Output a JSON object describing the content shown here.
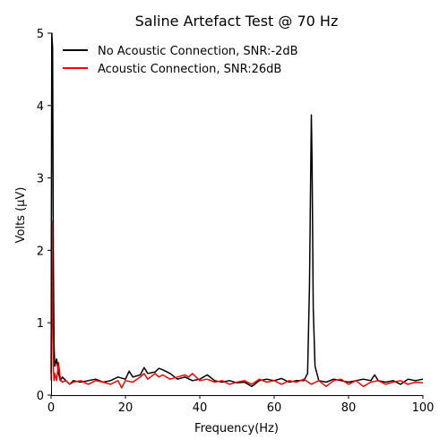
{
  "chart_data": {
    "type": "line",
    "title": "Saline Artefact Test @ 70 Hz",
    "xlabel": "Frequency(Hz)",
    "ylabel": "Volts (μV)",
    "xlim": [
      0,
      100
    ],
    "ylim": [
      0,
      5
    ],
    "xticks": [
      0,
      20,
      40,
      60,
      80,
      100
    ],
    "yticks": [
      0,
      1,
      2,
      3,
      4,
      5
    ],
    "grid": false,
    "legend_position": "upper-left",
    "series": [
      {
        "name": "No Acoustic Connection, SNR:-2dB",
        "color": "#000000",
        "x": [
          0,
          0.2,
          0.4,
          0.6,
          0.8,
          1,
          1.5,
          2,
          2.5,
          3,
          4,
          5,
          6,
          8,
          10,
          12,
          14,
          16,
          18,
          20,
          21,
          22,
          24,
          25,
          26,
          28,
          29,
          30,
          32,
          34,
          36,
          38,
          40,
          42,
          44,
          46,
          48,
          50,
          52,
          54,
          56,
          58,
          60,
          62,
          64,
          66,
          68,
          69,
          69.5,
          69.8,
          70,
          70.2,
          70.5,
          71,
          72,
          74,
          76,
          78,
          80,
          82,
          84,
          86,
          87,
          88,
          90,
          92,
          94,
          96,
          98,
          100
        ],
        "values": [
          0.3,
          5.0,
          4.8,
          2.0,
          0.7,
          0.4,
          0.5,
          0.3,
          0.2,
          0.25,
          0.2,
          0.15,
          0.2,
          0.18,
          0.2,
          0.22,
          0.18,
          0.2,
          0.25,
          0.22,
          0.33,
          0.25,
          0.28,
          0.38,
          0.3,
          0.32,
          0.37,
          0.35,
          0.3,
          0.22,
          0.25,
          0.2,
          0.22,
          0.28,
          0.2,
          0.18,
          0.2,
          0.17,
          0.18,
          0.12,
          0.2,
          0.22,
          0.2,
          0.23,
          0.18,
          0.2,
          0.2,
          0.3,
          1.5,
          3.0,
          3.87,
          3.2,
          1.2,
          0.4,
          0.2,
          0.18,
          0.22,
          0.2,
          0.18,
          0.2,
          0.22,
          0.2,
          0.28,
          0.2,
          0.18,
          0.2,
          0.15,
          0.22,
          0.2,
          0.22
        ]
      },
      {
        "name": "Acoustic Connection, SNR:26dB",
        "color": "#ff0000",
        "x": [
          0,
          0.2,
          0.4,
          0.6,
          0.8,
          1,
          1.5,
          2,
          2.5,
          3,
          4,
          5,
          6,
          8,
          10,
          12,
          14,
          16,
          18,
          19,
          20,
          22,
          24,
          25,
          26,
          28,
          29,
          30,
          32,
          34,
          36,
          37,
          38,
          40,
          42,
          44,
          46,
          48,
          50,
          52,
          54,
          56,
          58,
          60,
          62,
          64,
          66,
          68,
          70,
          72,
          74,
          76,
          78,
          80,
          82,
          84,
          86,
          88,
          90,
          92,
          94,
          96,
          98,
          100
        ],
        "values": [
          0.2,
          2.4,
          1.0,
          0.4,
          0.2,
          0.3,
          0.2,
          0.45,
          0.22,
          0.18,
          0.2,
          0.15,
          0.18,
          0.2,
          0.15,
          0.2,
          0.18,
          0.15,
          0.2,
          0.1,
          0.2,
          0.18,
          0.25,
          0.3,
          0.22,
          0.3,
          0.25,
          0.28,
          0.22,
          0.25,
          0.28,
          0.25,
          0.3,
          0.2,
          0.22,
          0.18,
          0.2,
          0.15,
          0.18,
          0.2,
          0.15,
          0.22,
          0.18,
          0.2,
          0.15,
          0.2,
          0.18,
          0.22,
          0.15,
          0.2,
          0.12,
          0.2,
          0.22,
          0.15,
          0.2,
          0.12,
          0.18,
          0.2,
          0.15,
          0.18,
          0.2,
          0.15,
          0.18,
          0.17
        ]
      }
    ]
  }
}
